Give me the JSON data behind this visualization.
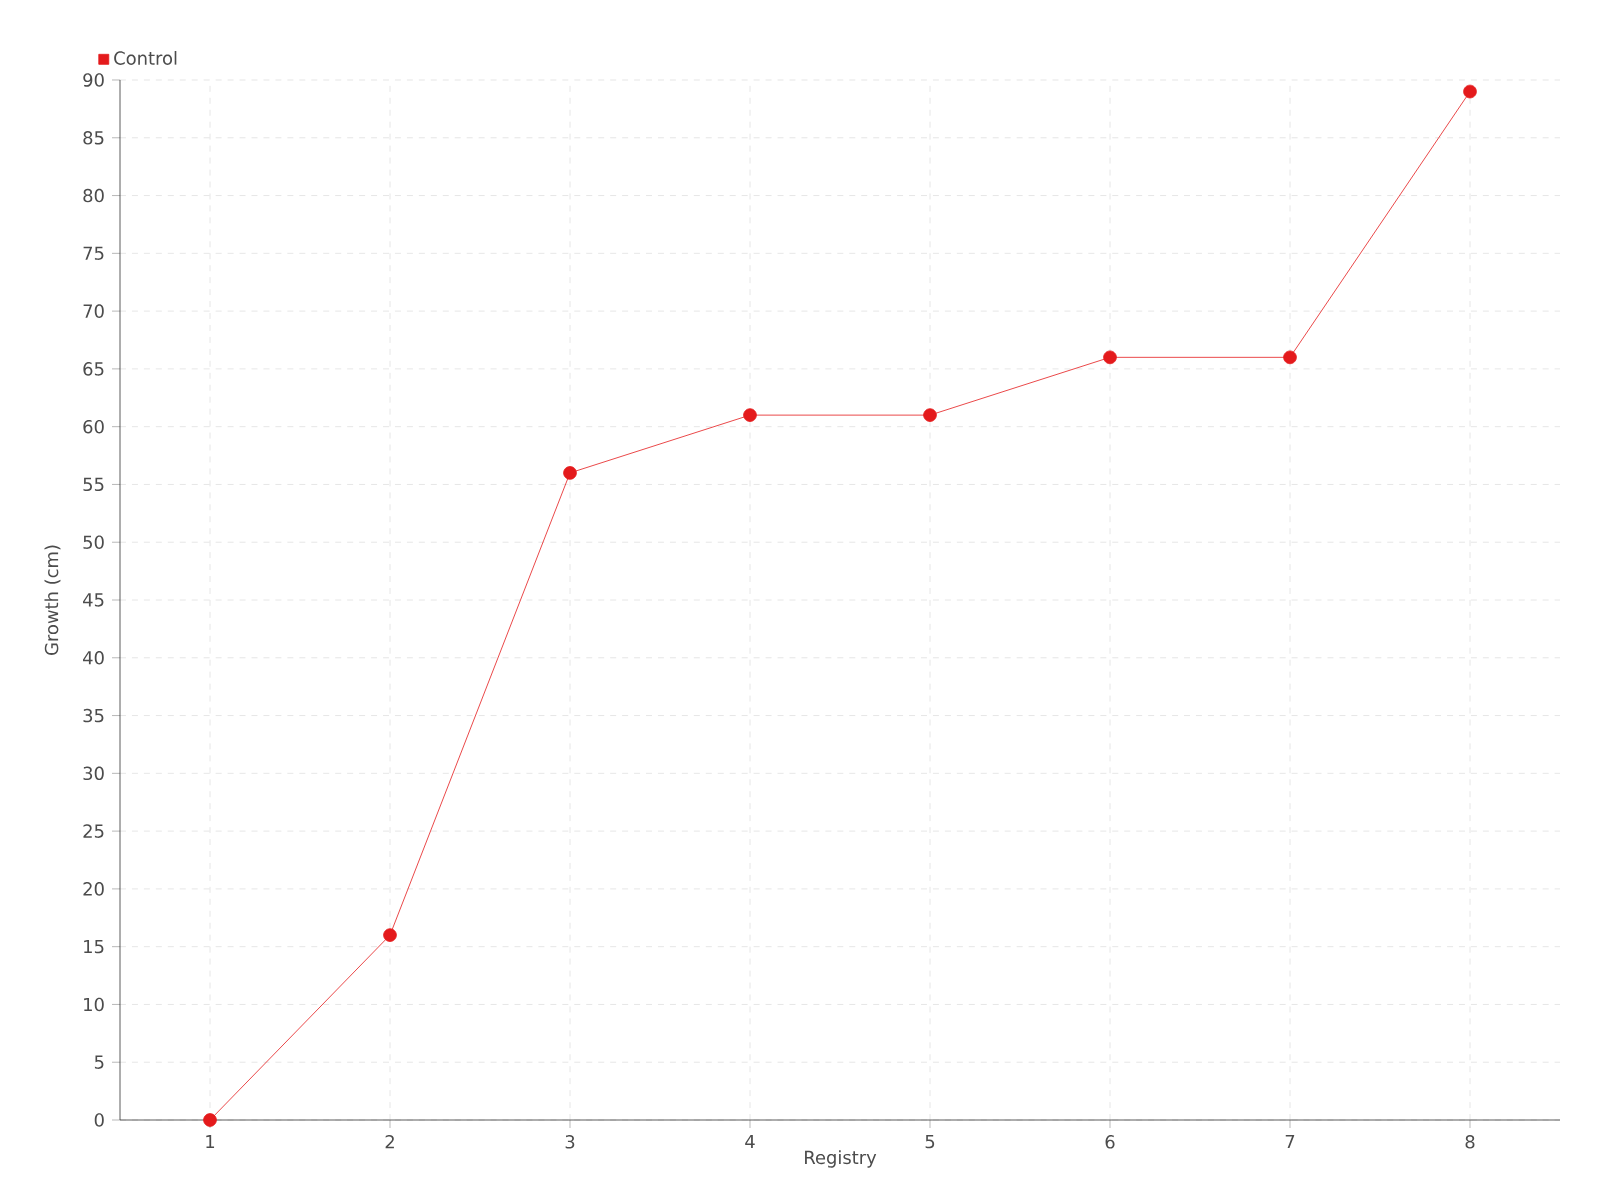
{
  "chart_data": {
    "type": "line",
    "xlabel": "Registry",
    "ylabel": "Growth (cm)",
    "categories": [
      "1",
      "2",
      "3",
      "4",
      "5",
      "6",
      "7",
      "8"
    ],
    "series": [
      {
        "name": "Control",
        "color": "#e41a1c",
        "values": [
          0,
          16,
          56,
          61,
          61,
          66,
          66,
          89
        ]
      }
    ],
    "ylim": [
      0,
      90
    ],
    "yticks": [
      0,
      5,
      10,
      15,
      20,
      25,
      30,
      35,
      40,
      45,
      50,
      55,
      60,
      65,
      70,
      75,
      80,
      85,
      90
    ],
    "grid": true,
    "legend": "top left",
    "marker": "circle",
    "line_style": "solid"
  }
}
